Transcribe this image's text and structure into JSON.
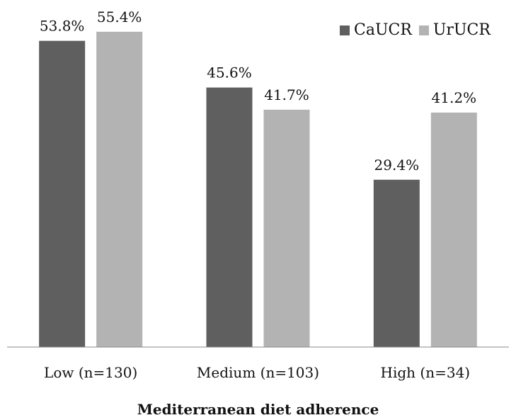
{
  "chart_data": {
    "type": "bar",
    "categories": [
      "Low (n=130)",
      "Medium (n=103)",
      "High (n=34)"
    ],
    "series": [
      {
        "name": "CaUCR",
        "values": [
          53.8,
          45.6,
          29.4
        ],
        "labels": [
          "53.8%",
          "45.6%",
          "29.4%"
        ],
        "color": "#5f5f5f"
      },
      {
        "name": "UrUCR",
        "values": [
          55.4,
          41.7,
          41.2
        ],
        "labels": [
          "55.4%",
          "41.7%",
          "41.2%"
        ],
        "color": "#b3b3b3"
      }
    ],
    "xlabel": "Mediterranean diet adherence",
    "ylabel": "",
    "ylim": [
      0,
      56
    ],
    "grid": false,
    "legend_position": "top-right",
    "value_unit": "%"
  }
}
